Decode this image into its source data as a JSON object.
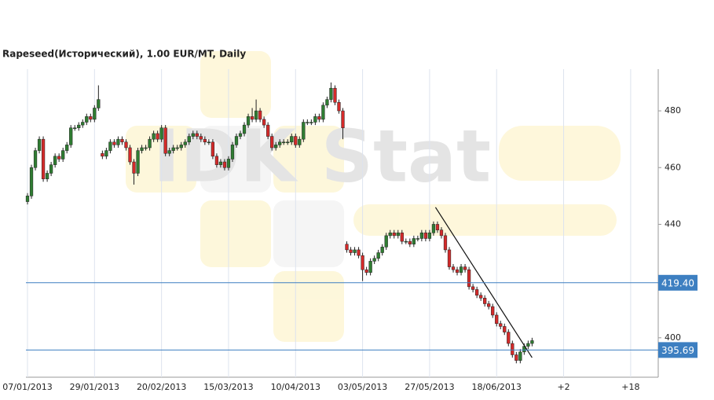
{
  "chart_data": {
    "type": "candlestick",
    "title": "Rapeseed(Исторический), 1.00 EUR/MT, Daily",
    "watermark": "IDK Stat",
    "up_color": "#2f7d32",
    "down_color": "#d42a2a",
    "open": [
      448,
      450,
      460,
      466,
      470,
      456,
      458,
      461,
      464,
      463,
      466,
      468,
      474,
      474,
      475,
      476,
      478,
      477,
      481,
      465,
      464,
      466,
      469,
      468,
      470,
      469,
      467,
      462,
      458,
      466,
      467,
      467,
      470,
      472,
      470,
      474,
      465,
      466,
      467,
      467,
      468,
      469,
      471,
      472,
      471,
      470,
      469,
      469,
      464,
      461,
      462,
      460,
      463,
      468,
      471,
      472,
      475,
      478,
      477,
      480,
      477,
      475,
      471,
      467,
      468,
      469,
      469,
      469,
      471,
      468,
      470,
      476,
      476,
      476,
      478,
      477,
      482,
      484,
      488,
      483,
      480,
      433,
      431,
      430,
      431,
      429,
      424,
      423,
      427,
      428,
      430,
      432,
      436,
      437,
      436,
      437,
      434,
      434,
      433,
      435,
      435,
      437,
      435,
      437,
      440,
      438,
      436,
      431,
      425,
      424,
      423,
      425,
      424,
      418,
      417,
      415,
      414,
      412,
      411,
      408,
      405,
      404,
      402,
      398,
      394,
      392,
      395,
      397,
      398
    ],
    "high": [
      451,
      461,
      467,
      471,
      471,
      459,
      462,
      465,
      465,
      467,
      469,
      475,
      475,
      476,
      477,
      479,
      479,
      482,
      489,
      466,
      467,
      470,
      470,
      471,
      471,
      470,
      468,
      463,
      467,
      468,
      468,
      471,
      473,
      473,
      475,
      475,
      467,
      468,
      468,
      469,
      470,
      472,
      473,
      473,
      472,
      471,
      470,
      470,
      465,
      463,
      463,
      464,
      469,
      472,
      473,
      476,
      479,
      481,
      484,
      481,
      478,
      476,
      472,
      469,
      470,
      470,
      470,
      472,
      472,
      471,
      477,
      477,
      477,
      479,
      479,
      483,
      485,
      490,
      489,
      484,
      481,
      434,
      432,
      432,
      432,
      430,
      425,
      428,
      429,
      431,
      433,
      437,
      438,
      438,
      438,
      438,
      435,
      435,
      436,
      436,
      438,
      438,
      438,
      441,
      441,
      439,
      437,
      432,
      426,
      425,
      426,
      426,
      425,
      419,
      418,
      416,
      415,
      413,
      412,
      409,
      406,
      405,
      403,
      399,
      395,
      396,
      398,
      399,
      400
    ],
    "low": [
      447,
      449,
      459,
      465,
      455,
      455,
      457,
      460,
      462,
      462,
      465,
      467,
      473,
      473,
      474,
      475,
      476,
      476,
      480,
      463,
      463,
      465,
      467,
      467,
      468,
      466,
      461,
      454,
      457,
      465,
      466,
      466,
      469,
      469,
      469,
      464,
      464,
      465,
      466,
      466,
      467,
      468,
      470,
      470,
      469,
      468,
      468,
      463,
      460,
      460,
      459,
      459,
      462,
      467,
      470,
      471,
      474,
      476,
      476,
      476,
      474,
      470,
      466,
      466,
      467,
      468,
      468,
      468,
      467,
      467,
      469,
      475,
      475,
      475,
      476,
      476,
      481,
      483,
      482,
      479,
      470,
      430,
      429,
      429,
      428,
      420,
      422,
      422,
      426,
      427,
      429,
      431,
      435,
      435,
      435,
      433,
      433,
      432,
      432,
      434,
      434,
      434,
      434,
      436,
      437,
      435,
      430,
      424,
      423,
      422,
      422,
      423,
      417,
      416,
      414,
      413,
      411,
      410,
      407,
      404,
      403,
      401,
      397,
      393,
      391,
      391,
      394,
      396,
      397
    ],
    "close": [
      450,
      460,
      466,
      470,
      456,
      458,
      461,
      464,
      463,
      466,
      468,
      474,
      474,
      475,
      476,
      478,
      477,
      481,
      484,
      464,
      466,
      469,
      468,
      470,
      469,
      467,
      462,
      458,
      466,
      467,
      467,
      470,
      472,
      470,
      474,
      465,
      466,
      467,
      467,
      468,
      469,
      471,
      472,
      471,
      470,
      469,
      469,
      464,
      461,
      462,
      460,
      463,
      468,
      471,
      472,
      475,
      478,
      477,
      480,
      477,
      475,
      471,
      467,
      468,
      469,
      469,
      469,
      471,
      468,
      470,
      476,
      476,
      476,
      478,
      477,
      482,
      484,
      488,
      483,
      480,
      474,
      431,
      430,
      431,
      429,
      424,
      423,
      427,
      428,
      430,
      432,
      436,
      437,
      436,
      437,
      434,
      434,
      433,
      435,
      435,
      437,
      435,
      437,
      440,
      438,
      436,
      431,
      425,
      424,
      423,
      425,
      424,
      418,
      417,
      415,
      414,
      412,
      411,
      408,
      405,
      404,
      402,
      398,
      394,
      392,
      395,
      397,
      398,
      399
    ],
    "xlim": [
      -0.4,
      160
    ],
    "xticks": [
      {
        "value": 0,
        "label": "07/01/2013"
      },
      {
        "value": 17,
        "label": "29/01/2013"
      },
      {
        "value": 34,
        "label": "20/02/2013"
      },
      {
        "value": 51,
        "label": "15/03/2013"
      },
      {
        "value": 68,
        "label": "10/04/2013"
      },
      {
        "value": 85,
        "label": "03/05/2013"
      },
      {
        "value": 102,
        "label": "27/05/2013"
      },
      {
        "value": 119,
        "label": "18/06/2013"
      },
      {
        "value": 136,
        "label": "+2"
      },
      {
        "value": 153,
        "label": "+18"
      }
    ],
    "ylim": [
      386.1,
      494.7
    ],
    "yticks": [
      400,
      440,
      460,
      480
    ],
    "hlines": [
      {
        "value": 419.4,
        "label": "419.40",
        "color": "#3d7fc1"
      },
      {
        "value": 395.69,
        "label": "395.69",
        "color": "#3d7fc1"
      }
    ],
    "trendline": {
      "x": [
        103.5,
        128
      ],
      "y": [
        446,
        393
      ]
    },
    "grid": true
  }
}
